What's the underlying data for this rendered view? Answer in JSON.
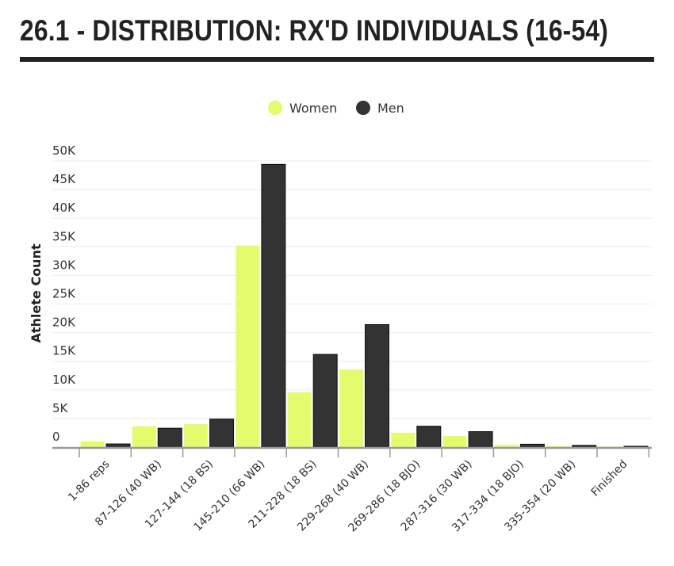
{
  "title": "26.1 - DISTRIBUTION: RX'D INDIVIDUALS (16-54)",
  "chart_data": {
    "type": "bar",
    "title": "26.1 - DISTRIBUTION: RX'D INDIVIDUALS (16-54)",
    "xlabel": "",
    "ylabel": "Athlete Count",
    "ylim": [
      0,
      50000
    ],
    "yticks": [
      0,
      5000,
      10000,
      15000,
      20000,
      25000,
      30000,
      35000,
      40000,
      45000,
      50000
    ],
    "ytick_labels": [
      "0",
      "5K",
      "10K",
      "15K",
      "20K",
      "25K",
      "30K",
      "35K",
      "40K",
      "45K",
      "50K"
    ],
    "grid": true,
    "legend_position": "top-center",
    "categories": [
      "1-86 reps",
      "87-126 (40 WB)",
      "127-144 (18 BS)",
      "145-210 (66 WB)",
      "211-228 (18 BS)",
      "229-268 (40 WB)",
      "269-286 (18 BJO)",
      "287-316 (30 WB)",
      "317-334 (18 BJO)",
      "335-354 (20 WB)",
      "Finished"
    ],
    "series": [
      {
        "name": "Women",
        "color": "#e4fb6e",
        "values": [
          1000,
          3650,
          4000,
          35200,
          9550,
          13550,
          2500,
          1950,
          400,
          200,
          100
        ]
      },
      {
        "name": "Men",
        "color": "#333333",
        "values": [
          550,
          3300,
          4900,
          49400,
          16200,
          21400,
          3650,
          2700,
          500,
          300,
          150
        ]
      }
    ]
  }
}
